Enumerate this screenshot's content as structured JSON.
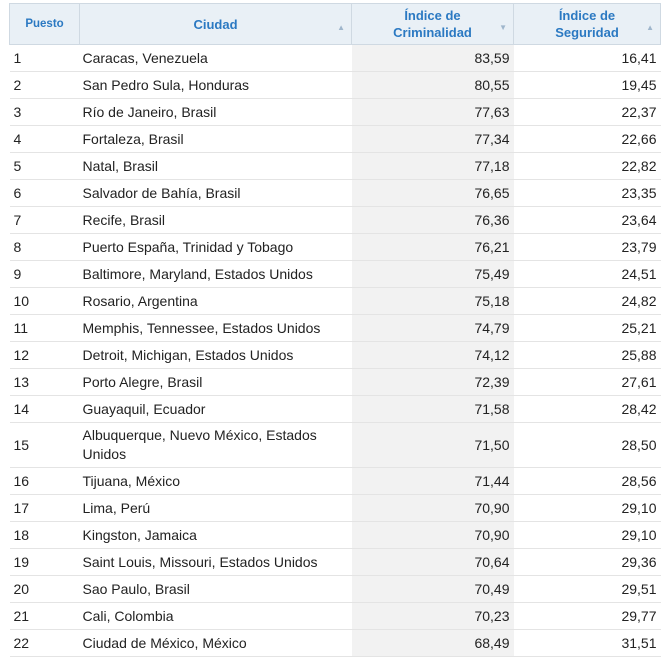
{
  "table": {
    "headers": {
      "rank": "Puesto",
      "city": "Ciudad",
      "crime_l1": "Índice de",
      "crime_l2": "Criminalidad",
      "safety_l1": "Índice de",
      "safety_l2": "Seguridad"
    },
    "rows": [
      {
        "rank": "1",
        "city": "Caracas, Venezuela",
        "crime": "83,59",
        "safety": "16,41"
      },
      {
        "rank": "2",
        "city": "San Pedro Sula, Honduras",
        "crime": "80,55",
        "safety": "19,45"
      },
      {
        "rank": "3",
        "city": "Río de Janeiro, Brasil",
        "crime": "77,63",
        "safety": "22,37"
      },
      {
        "rank": "4",
        "city": "Fortaleza, Brasil",
        "crime": "77,34",
        "safety": "22,66"
      },
      {
        "rank": "5",
        "city": "Natal, Brasil",
        "crime": "77,18",
        "safety": "22,82"
      },
      {
        "rank": "6",
        "city": "Salvador de Bahía, Brasil",
        "crime": "76,65",
        "safety": "23,35"
      },
      {
        "rank": "7",
        "city": "Recife, Brasil",
        "crime": "76,36",
        "safety": "23,64"
      },
      {
        "rank": "8",
        "city": "Puerto España, Trinidad y Tobago",
        "crime": "76,21",
        "safety": "23,79"
      },
      {
        "rank": "9",
        "city": "Baltimore, Maryland, Estados Unidos",
        "crime": "75,49",
        "safety": "24,51"
      },
      {
        "rank": "10",
        "city": "Rosario, Argentina",
        "crime": "75,18",
        "safety": "24,82"
      },
      {
        "rank": "11",
        "city": "Memphis, Tennessee, Estados Unidos",
        "crime": "74,79",
        "safety": "25,21"
      },
      {
        "rank": "12",
        "city": "Detroit, Michigan, Estados Unidos",
        "crime": "74,12",
        "safety": "25,88"
      },
      {
        "rank": "13",
        "city": "Porto Alegre, Brasil",
        "crime": "72,39",
        "safety": "27,61"
      },
      {
        "rank": "14",
        "city": "Guayaquil, Ecuador",
        "crime": "71,58",
        "safety": "28,42"
      },
      {
        "rank": "15",
        "city": "Albuquerque, Nuevo México, Estados Unidos",
        "crime": "71,50",
        "safety": "28,50"
      },
      {
        "rank": "16",
        "city": "Tijuana, México",
        "crime": "71,44",
        "safety": "28,56"
      },
      {
        "rank": "17",
        "city": "Lima, Perú",
        "crime": "70,90",
        "safety": "29,10"
      },
      {
        "rank": "18",
        "city": "Kingston, Jamaica",
        "crime": "70,90",
        "safety": "29,10"
      },
      {
        "rank": "19",
        "city": "Saint Louis, Missouri, Estados Unidos",
        "crime": "70,64",
        "safety": "29,36"
      },
      {
        "rank": "20",
        "city": "Sao Paulo, Brasil",
        "crime": "70,49",
        "safety": "29,51"
      },
      {
        "rank": "21",
        "city": "Cali, Colombia",
        "crime": "70,23",
        "safety": "29,77"
      },
      {
        "rank": "22",
        "city": "Ciudad de México, México",
        "crime": "68,49",
        "safety": "31,51"
      }
    ]
  },
  "sort_icons": {
    "city": "sort-up-icon",
    "crime": "sort-down-icon",
    "safety": "sort-up-icon"
  }
}
